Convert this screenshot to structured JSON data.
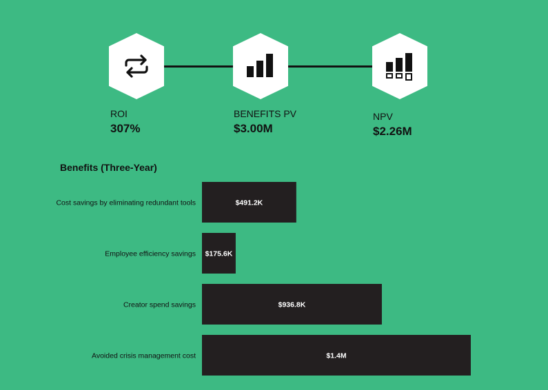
{
  "metrics": [
    {
      "label": "ROI",
      "value": "307%",
      "icon": "refresh-icon"
    },
    {
      "label": "BENEFITS PV",
      "value": "$3.00M",
      "icon": "bar-chart-icon"
    },
    {
      "label": "NPV",
      "value": "$2.26M",
      "icon": "npv-chart-icon"
    }
  ],
  "colors": {
    "background": "#3dba83",
    "bar": "#231f20",
    "icon_bg": "#ffffff"
  },
  "chart_data": {
    "type": "bar",
    "orientation": "horizontal",
    "title": "Benefits (Three-Year)",
    "categories": [
      "Cost savings by eliminating redundant tools",
      "Employee efficiency savings",
      "Creator spend savings",
      "Avoided crisis management cost"
    ],
    "values": [
      491.2,
      175.6,
      936.8,
      1400
    ],
    "value_unit": "$K",
    "data_labels": [
      "$491.2K",
      "$175.6K",
      "$936.8K",
      "$1.4M"
    ],
    "xlim": [
      0,
      1400
    ],
    "grid": false,
    "legend": "none"
  }
}
